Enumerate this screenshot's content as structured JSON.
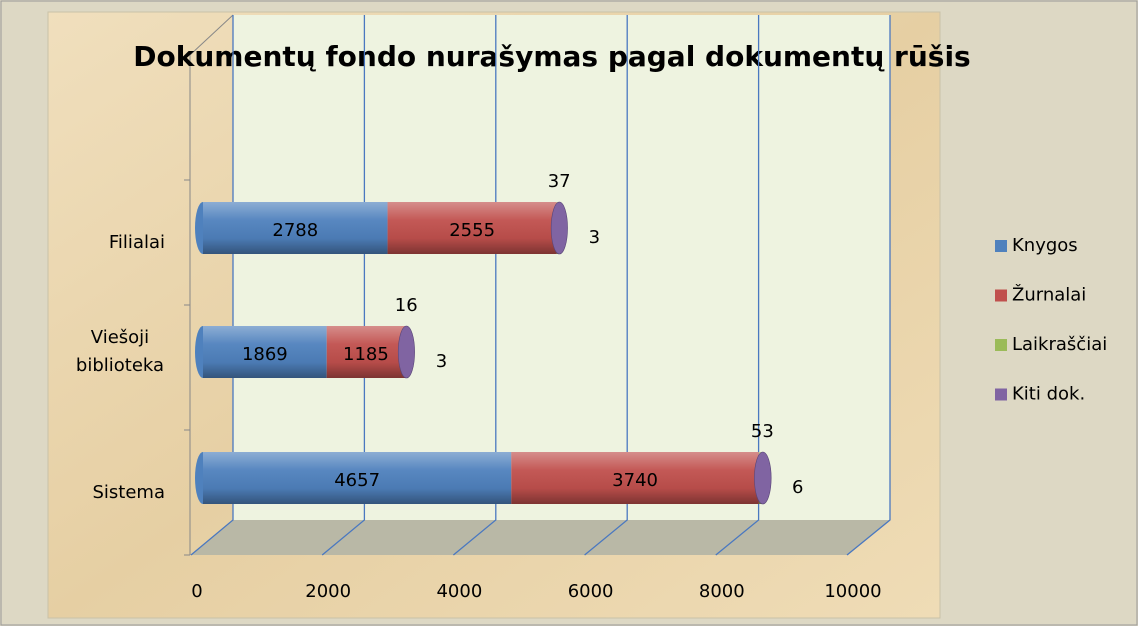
{
  "chart_data": {
    "type": "bar",
    "orientation": "horizontal",
    "stacked": true,
    "title": "Dokumentų fondo nurašymas pagal dokumentų rūšis",
    "categories": [
      "Filialai",
      "Viešoji biblioteka",
      "Sistema"
    ],
    "series": [
      {
        "name": "Knygos",
        "color": "#4f81bd",
        "values": [
          2788,
          1869,
          4657
        ]
      },
      {
        "name": "Žurnalai",
        "color": "#c0504d",
        "values": [
          2555,
          1185,
          3740
        ]
      },
      {
        "name": "Laikraščiai",
        "color": "#9bbb59",
        "values": [
          37,
          16,
          53
        ]
      },
      {
        "name": "Kiti dok.",
        "color": "#8064a2",
        "values": [
          3,
          3,
          6
        ]
      }
    ],
    "xlim": [
      0,
      10000
    ],
    "xticks": [
      0,
      2000,
      4000,
      6000,
      8000,
      10000
    ],
    "grid": true,
    "legend": "right"
  }
}
